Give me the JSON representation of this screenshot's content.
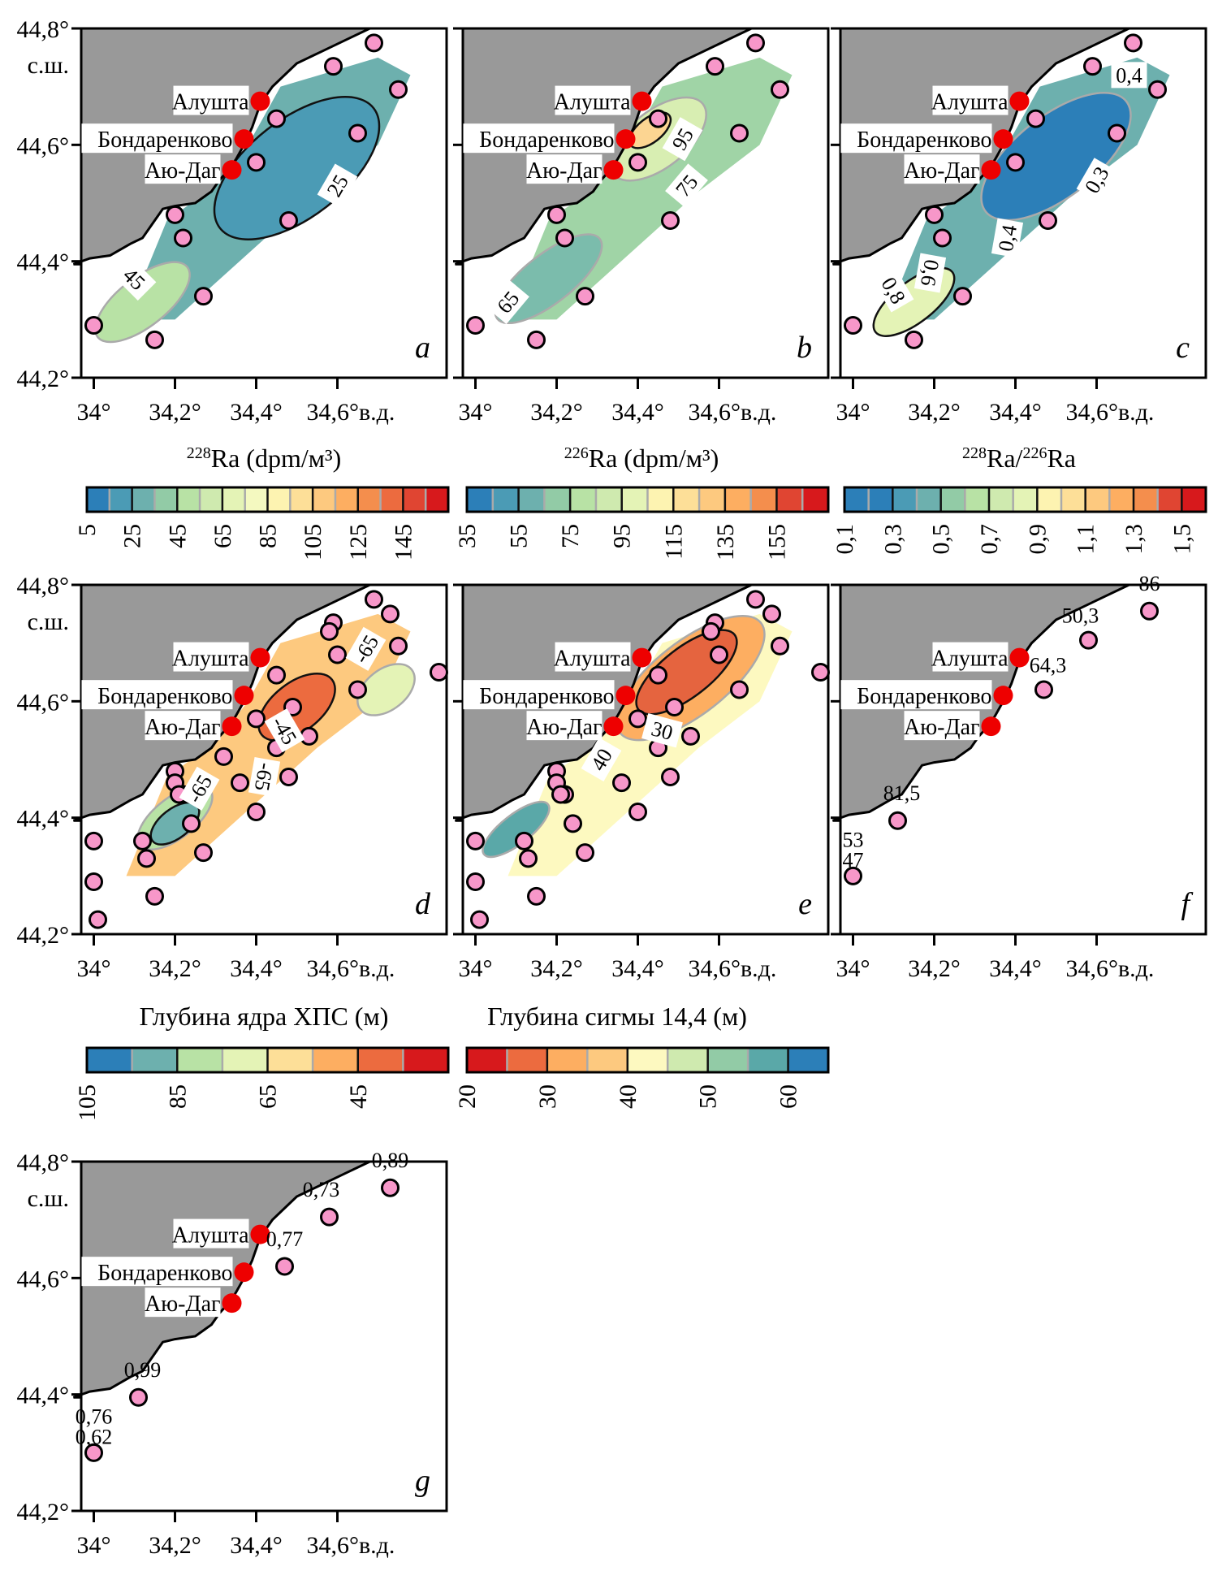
{
  "figure": {
    "lat_ticks": [
      "44,2°",
      "44,4°",
      "44,6°",
      "44,8°"
    ],
    "lat_unit": "с.ш.",
    "lon_ticks": [
      "34°",
      "34,2°",
      "34,4°",
      "34,6°"
    ],
    "lon_unit": "в.д.",
    "towns": [
      "Алушта",
      "Бондаренково",
      "Аю-Даг"
    ],
    "colors": {
      "land": "#999999",
      "town_marker": "#ee0000",
      "station_marker": "#f797c9",
      "label_bg": "#ffffff"
    }
  },
  "chart_data": [
    {
      "type": "heatmap",
      "panel": "a",
      "title": "",
      "xlabel_sup": "228",
      "xlabel": "Ra (dpm/м³)",
      "contour_labels": [
        "25",
        "45"
      ],
      "colorbar": {
        "ticks": [
          "5",
          "25",
          "45",
          "65",
          "85",
          "105",
          "125",
          "145"
        ],
        "range": [
          5,
          165
        ],
        "colors": [
          "#2c7fb8",
          "#4b9bb5",
          "#6db0ae",
          "#92cba6",
          "#b8e2a5",
          "#cfeaaf",
          "#e4f3b6",
          "#f4f9c0",
          "#fdf3b1",
          "#fddf98",
          "#fdc97f",
          "#fdae61",
          "#f48e4d",
          "#ec6b3f",
          "#e04532",
          "#d7191c"
        ]
      }
    },
    {
      "type": "heatmap",
      "panel": "b",
      "xlabel_sup": "226",
      "xlabel": "Ra (dpm/м³)",
      "contour_labels": [
        "95",
        "75",
        "65"
      ],
      "colorbar": {
        "ticks": [
          "35",
          "55",
          "75",
          "95",
          "115",
          "135",
          "155"
        ],
        "range": [
          35,
          175
        ],
        "colors": [
          "#2c7fb8",
          "#4b9bb5",
          "#6db0ae",
          "#92cba6",
          "#b8e2a5",
          "#cfeaaf",
          "#e4f3b6",
          "#fdf3b1",
          "#fddf98",
          "#fdc97f",
          "#fdae61",
          "#f48e4d",
          "#e04532",
          "#d7191c"
        ]
      }
    },
    {
      "type": "heatmap",
      "panel": "c",
      "xlabel_sup1": "228",
      "xlabel_mid": "Ra/",
      "xlabel_sup2": "226",
      "xlabel": "Ra",
      "contour_labels": [
        "0,4",
        "0,3",
        "0,4",
        "0,6",
        "0,8"
      ],
      "colorbar": {
        "ticks": [
          "0,1",
          "0,3",
          "0,5",
          "0,7",
          "0,9",
          "1,1",
          "1,3",
          "1,5"
        ],
        "range": [
          0.1,
          1.6
        ],
        "colors": [
          "#2c7fb8",
          "#2c7fb8",
          "#4b9bb5",
          "#6db0ae",
          "#92cba6",
          "#b8e2a5",
          "#cfeaaf",
          "#e4f3b6",
          "#fdf3b1",
          "#fddf98",
          "#fdc97f",
          "#fdae61",
          "#f48e4d",
          "#e04532",
          "#d7191c"
        ]
      }
    },
    {
      "type": "heatmap",
      "panel": "d",
      "xlabel": "Глубина ядра ХПС (м)",
      "contour_labels": [
        "-65",
        "-45",
        "-65",
        "-65"
      ],
      "colorbar": {
        "ticks": [
          "105",
          "85",
          "65",
          "45"
        ],
        "range": [
          105,
          25
        ],
        "colors": [
          "#2c7fb8",
          "#6db0ae",
          "#b8e2a5",
          "#e4f3b6",
          "#fddf98",
          "#fdae61",
          "#ec6b3f",
          "#d7191c"
        ]
      }
    },
    {
      "type": "heatmap",
      "panel": "e",
      "xlabel": "Глубина сигмы 14,4 (м)",
      "contour_labels": [
        "30",
        "40"
      ],
      "colorbar": {
        "ticks": [
          "20",
          "30",
          "40",
          "50",
          "60"
        ],
        "range": [
          20,
          65
        ],
        "colors": [
          "#d7191c",
          "#ec6b3f",
          "#fdae61",
          "#fdc97f",
          "#fdf9c0",
          "#cfeaaf",
          "#92cba6",
          "#5aa8a8",
          "#2c7fb8"
        ]
      }
    },
    {
      "type": "scatter",
      "panel": "f",
      "xlabel": "",
      "point_labels": [
        "86",
        "50,3",
        "64,3",
        "81,5",
        "53",
        "47"
      ]
    },
    {
      "type": "scatter",
      "panel": "g",
      "xlabel": "",
      "point_labels": [
        "0,89",
        "0,73",
        "0,77",
        "0,99",
        "0,76",
        "0,62"
      ]
    }
  ]
}
